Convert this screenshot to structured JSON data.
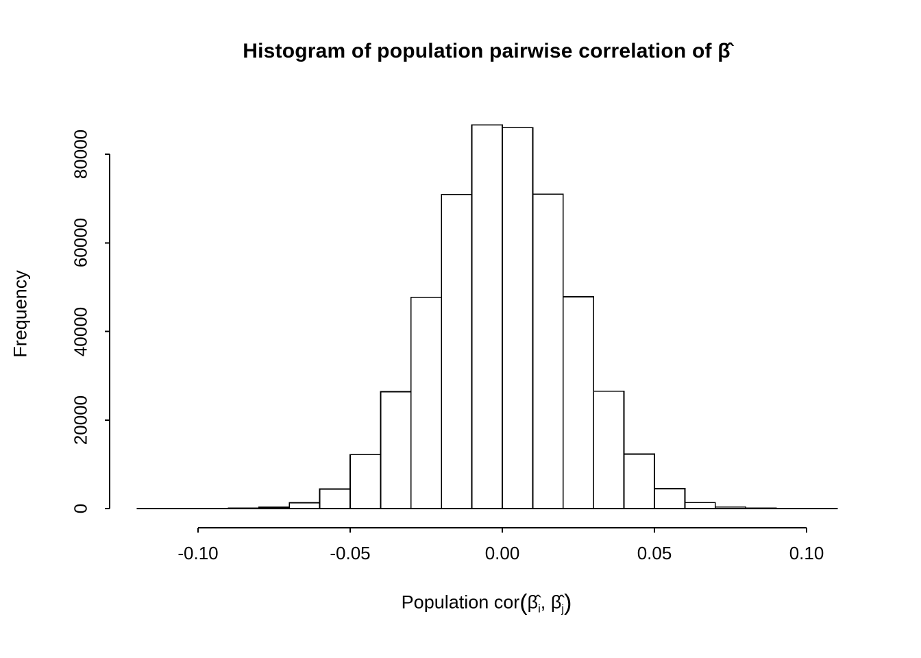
{
  "chart_data": {
    "type": "bar",
    "subtype": "histogram",
    "title": "Histogram of population pairwise correlation of β̂",
    "xlabel": "Population cor(β̂i, β̂j)",
    "ylabel": "Frequency",
    "xlabel_parts": {
      "prefix": "Population cor",
      "open_paren": "(",
      "beta_i": "β̂",
      "sub_i": "i",
      "comma": ", ",
      "beta_j": "β̂",
      "sub_j": "j",
      "close_paren": ")"
    },
    "bin_start": -0.12,
    "bin_width": 0.01,
    "bins": [
      2,
      5,
      20,
      90,
      330,
      1300,
      4400,
      12200,
      26400,
      47700,
      70900,
      86600,
      86000,
      71000,
      47800,
      26500,
      12300,
      4500,
      1350,
      340,
      90,
      20,
      5
    ],
    "x_ticks": [
      -0.1,
      -0.05,
      0.0,
      0.05,
      0.1
    ],
    "x_tick_labels": [
      "-0.10",
      "-0.05",
      "0.00",
      "0.05",
      "0.10"
    ],
    "y_ticks": [
      0,
      20000,
      40000,
      60000,
      80000
    ],
    "y_tick_labels": [
      "0",
      "20000",
      "40000",
      "60000",
      "80000"
    ],
    "xlim": [
      -0.12,
      0.11
    ],
    "ylim": [
      0,
      86600
    ],
    "grid": false,
    "legend": "none",
    "bar_fill": "#ffffff",
    "bar_stroke": "#000000",
    "axis_color": "#000000",
    "background": "#ffffff"
  }
}
